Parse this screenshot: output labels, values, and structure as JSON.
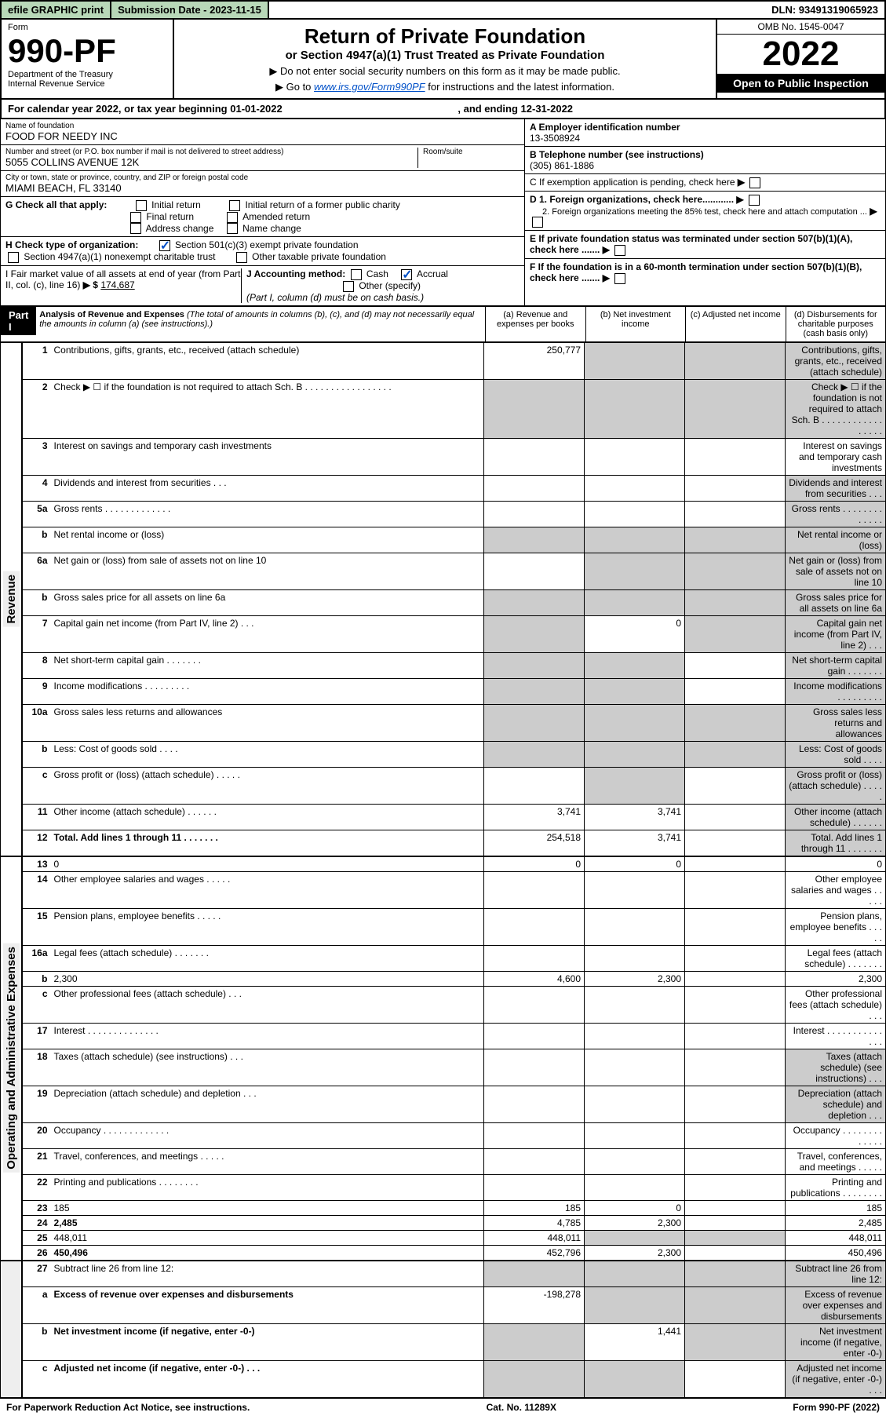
{
  "top": {
    "efile": "efile GRAPHIC print",
    "submission_label": "Submission Date - 2023-11-15",
    "dln": "DLN: 93491319065923"
  },
  "header": {
    "form_label": "Form",
    "form_number": "990-PF",
    "dept": "Department of the Treasury",
    "irs": "Internal Revenue Service",
    "title": "Return of Private Foundation",
    "subtitle": "or Section 4947(a)(1) Trust Treated as Private Foundation",
    "note1": "▶ Do not enter social security numbers on this form as it may be made public.",
    "note2_pre": "▶ Go to ",
    "note2_link": "www.irs.gov/Form990PF",
    "note2_post": " for instructions and the latest information.",
    "omb": "OMB No. 1545-0047",
    "year": "2022",
    "open": "Open to Public Inspection"
  },
  "cal": {
    "text_pre": "For calendar year 2022, or tax year beginning ",
    "begin": "01-01-2022",
    "text_mid": ", and ending ",
    "end": "12-31-2022"
  },
  "name": {
    "lab": "Name of foundation",
    "val": "FOOD FOR NEEDY INC"
  },
  "addr": {
    "lab": "Number and street (or P.O. box number if mail is not delivered to street address)",
    "val": "5055 COLLINS AVENUE 12K",
    "room_lab": "Room/suite"
  },
  "city": {
    "lab": "City or town, state or province, country, and ZIP or foreign postal code",
    "val": "MIAMI BEACH, FL  33140"
  },
  "ein": {
    "lab": "A Employer identification number",
    "val": "13-3508924"
  },
  "phone": {
    "lab": "B Telephone number (see instructions)",
    "val": "(305) 861-1886"
  },
  "c": "C If exemption application is pending, check here",
  "d1": "D 1. Foreign organizations, check here............",
  "d2": "2. Foreign organizations meeting the 85% test, check here and attach computation ...",
  "e": "E If private foundation status was terminated under section 507(b)(1)(A), check here .......",
  "f": "F If the foundation is in a 60-month termination under section 507(b)(1)(B), check here .......",
  "g": {
    "lab": "G Check all that apply:",
    "opts": [
      "Initial return",
      "Initial return of a former public charity",
      "Final return",
      "Amended return",
      "Address change",
      "Name change"
    ]
  },
  "h": {
    "lab": "H Check type of organization:",
    "o1": "Section 501(c)(3) exempt private foundation",
    "o2": "Section 4947(a)(1) nonexempt charitable trust",
    "o3": "Other taxable private foundation"
  },
  "i": {
    "lab": "I Fair market value of all assets at end of year (from Part II, col. (c), line 16)",
    "arrow": "▶ $",
    "val": "174,687"
  },
  "j": {
    "lab": "J Accounting method:",
    "cash": "Cash",
    "accrual": "Accrual",
    "other": "Other (specify)",
    "note": "(Part I, column (d) must be on cash basis.)"
  },
  "part1": {
    "label": "Part I",
    "title": "Analysis of Revenue and Expenses",
    "note": "(The total of amounts in columns (b), (c), and (d) may not necessarily equal the amounts in column (a) (see instructions).)",
    "cols": {
      "a": "(a) Revenue and expenses per books",
      "b": "(b) Net investment income",
      "c": "(c) Adjusted net income",
      "d": "(d) Disbursements for charitable purposes (cash basis only)"
    }
  },
  "side_rev": "Revenue",
  "side_exp": "Operating and Administrative Expenses",
  "lines": [
    {
      "n": "1",
      "d": "Contributions, gifts, grants, etc., received (attach schedule)",
      "a": "250,777",
      "shade_bcd": true
    },
    {
      "n": "2",
      "d": "Check ▶ ☐ if the foundation is not required to attach Sch. B  . . . . . . . . . . . . . . . . .",
      "shade_all": true
    },
    {
      "n": "3",
      "d": "Interest on savings and temporary cash investments"
    },
    {
      "n": "4",
      "d": "Dividends and interest from securities  . . .",
      "shade_d": true
    },
    {
      "n": "5a",
      "d": "Gross rents  . . . . . . . . . . . . .",
      "shade_d": true
    },
    {
      "n": "b",
      "d": "Net rental income or (loss)",
      "shade_all": true
    },
    {
      "n": "6a",
      "d": "Net gain or (loss) from sale of assets not on line 10",
      "shade_bcd": true
    },
    {
      "n": "b",
      "d": "Gross sales price for all assets on line 6a",
      "shade_all": true
    },
    {
      "n": "7",
      "d": "Capital gain net income (from Part IV, line 2)  . . .",
      "b": "0",
      "shade_a": true,
      "shade_cd": true
    },
    {
      "n": "8",
      "d": "Net short-term capital gain  . . . . . . .",
      "shade_ab": true,
      "shade_d": true
    },
    {
      "n": "9",
      "d": "Income modifications  . . . . . . . . .",
      "shade_ab": true,
      "shade_d": true
    },
    {
      "n": "10a",
      "d": "Gross sales less returns and allowances",
      "shade_all": true
    },
    {
      "n": "b",
      "d": "Less: Cost of goods sold  . . . .",
      "shade_all": true
    },
    {
      "n": "c",
      "d": "Gross profit or (loss) (attach schedule)  . . . . .",
      "shade_b": true,
      "shade_d": true
    },
    {
      "n": "11",
      "d": "Other income (attach schedule)  . . . . . .",
      "a": "3,741",
      "b": "3,741",
      "shade_d": true
    },
    {
      "n": "12",
      "d": "Total. Add lines 1 through 11  . . . . . . .",
      "bold": true,
      "a": "254,518",
      "b": "3,741",
      "shade_d": true
    }
  ],
  "exp_lines": [
    {
      "n": "13",
      "d": "0",
      "a": "0",
      "b": "0"
    },
    {
      "n": "14",
      "d": "Other employee salaries and wages  . . . . ."
    },
    {
      "n": "15",
      "d": "Pension plans, employee benefits  . . . . ."
    },
    {
      "n": "16a",
      "d": "Legal fees (attach schedule)  . . . . . . ."
    },
    {
      "n": "b",
      "d": "2,300",
      "a": "4,600",
      "b": "2,300"
    },
    {
      "n": "c",
      "d": "Other professional fees (attach schedule)  . . ."
    },
    {
      "n": "17",
      "d": "Interest  . . . . . . . . . . . . . ."
    },
    {
      "n": "18",
      "d": "Taxes (attach schedule) (see instructions)  . . .",
      "shade_d": true
    },
    {
      "n": "19",
      "d": "Depreciation (attach schedule) and depletion  . . .",
      "shade_d": true
    },
    {
      "n": "20",
      "d": "Occupancy  . . . . . . . . . . . . ."
    },
    {
      "n": "21",
      "d": "Travel, conferences, and meetings  . . . . ."
    },
    {
      "n": "22",
      "d": "Printing and publications  . . . . . . . ."
    },
    {
      "n": "23",
      "d": "185",
      "a": "185",
      "b": "0"
    },
    {
      "n": "24",
      "d": "2,485",
      "bold": true,
      "a": "4,785",
      "b": "2,300"
    },
    {
      "n": "25",
      "d": "448,011",
      "a": "448,011",
      "shade_bc": true
    },
    {
      "n": "26",
      "d": "450,496",
      "bold": true,
      "a": "452,796",
      "b": "2,300"
    }
  ],
  "net_lines": [
    {
      "n": "27",
      "d": "Subtract line 26 from line 12:",
      "shade_all": true
    },
    {
      "n": "a",
      "d": "Excess of revenue over expenses and disbursements",
      "bold": true,
      "a": "-198,278",
      "shade_bcd": true
    },
    {
      "n": "b",
      "d": "Net investment income (if negative, enter -0-)",
      "bold": true,
      "b": "1,441",
      "shade_a": true,
      "shade_cd": true
    },
    {
      "n": "c",
      "d": "Adjusted net income (if negative, enter -0-)  . . .",
      "bold": true,
      "shade_ab": true,
      "shade_d": true
    }
  ],
  "footer": {
    "left": "For Paperwork Reduction Act Notice, see instructions.",
    "mid": "Cat. No. 11289X",
    "right": "Form 990-PF (2022)"
  },
  "colors": {
    "green_bg": "#b8d8b8",
    "link": "#0050c8",
    "shade": "#cccccc"
  }
}
